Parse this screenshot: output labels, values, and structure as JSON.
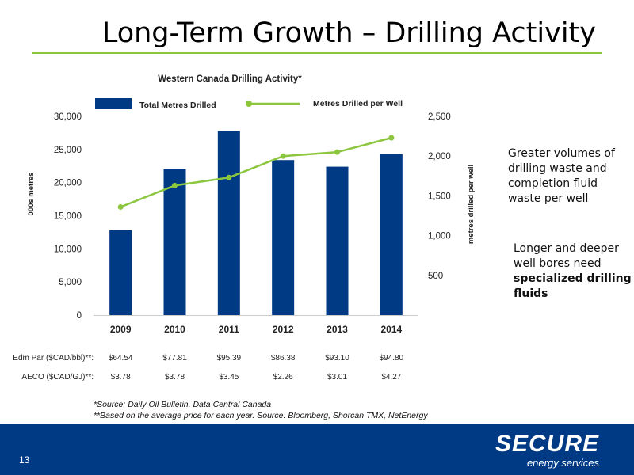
{
  "slide": {
    "title": "Long-Term Growth – Drilling Activity",
    "page_number": "13"
  },
  "side_text": {
    "first_a": "Greater volumes",
    "first_b": " of drilling waste and completion fluid waste per well",
    "second_a": "Longer and deeper well bores need ",
    "second_b": "specialized drilling fluids"
  },
  "notes": {
    "source": "*Source: Daily Oil Bulletin, Data Central Canada",
    "price_note": "**Based on the average price for each year. Source: Bloomberg, Shorcan TMX, NetEnergy"
  },
  "logo": {
    "main": "SECURE",
    "sub": "energy services"
  },
  "chart_data": {
    "type": "bar",
    "title": "Western Canada Drilling Activity*",
    "categories": [
      "2009",
      "2010",
      "2011",
      "2012",
      "2013",
      "2014"
    ],
    "bar_series": {
      "name": "Total Metres Drilled",
      "values": [
        12800,
        22000,
        27800,
        23400,
        22400,
        24300
      ],
      "color": "#003a85"
    },
    "line_series": {
      "name": "Metres Drilled per Well",
      "values": [
        1360,
        1630,
        1730,
        2000,
        2050,
        2230
      ],
      "color": "#8cc63f"
    },
    "y_left": {
      "label": "000s metres",
      "range": [
        0,
        30000
      ],
      "ticks": [
        "0",
        "5,000",
        "10,000",
        "15,000",
        "20,000",
        "25,000",
        "30,000"
      ]
    },
    "y_right": {
      "label": "metres drilled per well",
      "range": [
        0,
        2500
      ],
      "ticks": [
        "500",
        "1,000",
        "1,500",
        "2,000",
        "2,500"
      ]
    },
    "price_rows": [
      {
        "label": "Edm Par ($CAD/bbl)**:",
        "values": [
          "$64.54",
          "$77.81",
          "$95.39",
          "$86.38",
          "$93.10",
          "$94.80"
        ]
      },
      {
        "label": "AECO ($CAD/GJ)**:",
        "values": [
          "$3.78",
          "$3.78",
          "$3.45",
          "$2.26",
          "$3.01",
          "$4.27"
        ]
      }
    ],
    "grid": false,
    "legend_position": "top"
  }
}
